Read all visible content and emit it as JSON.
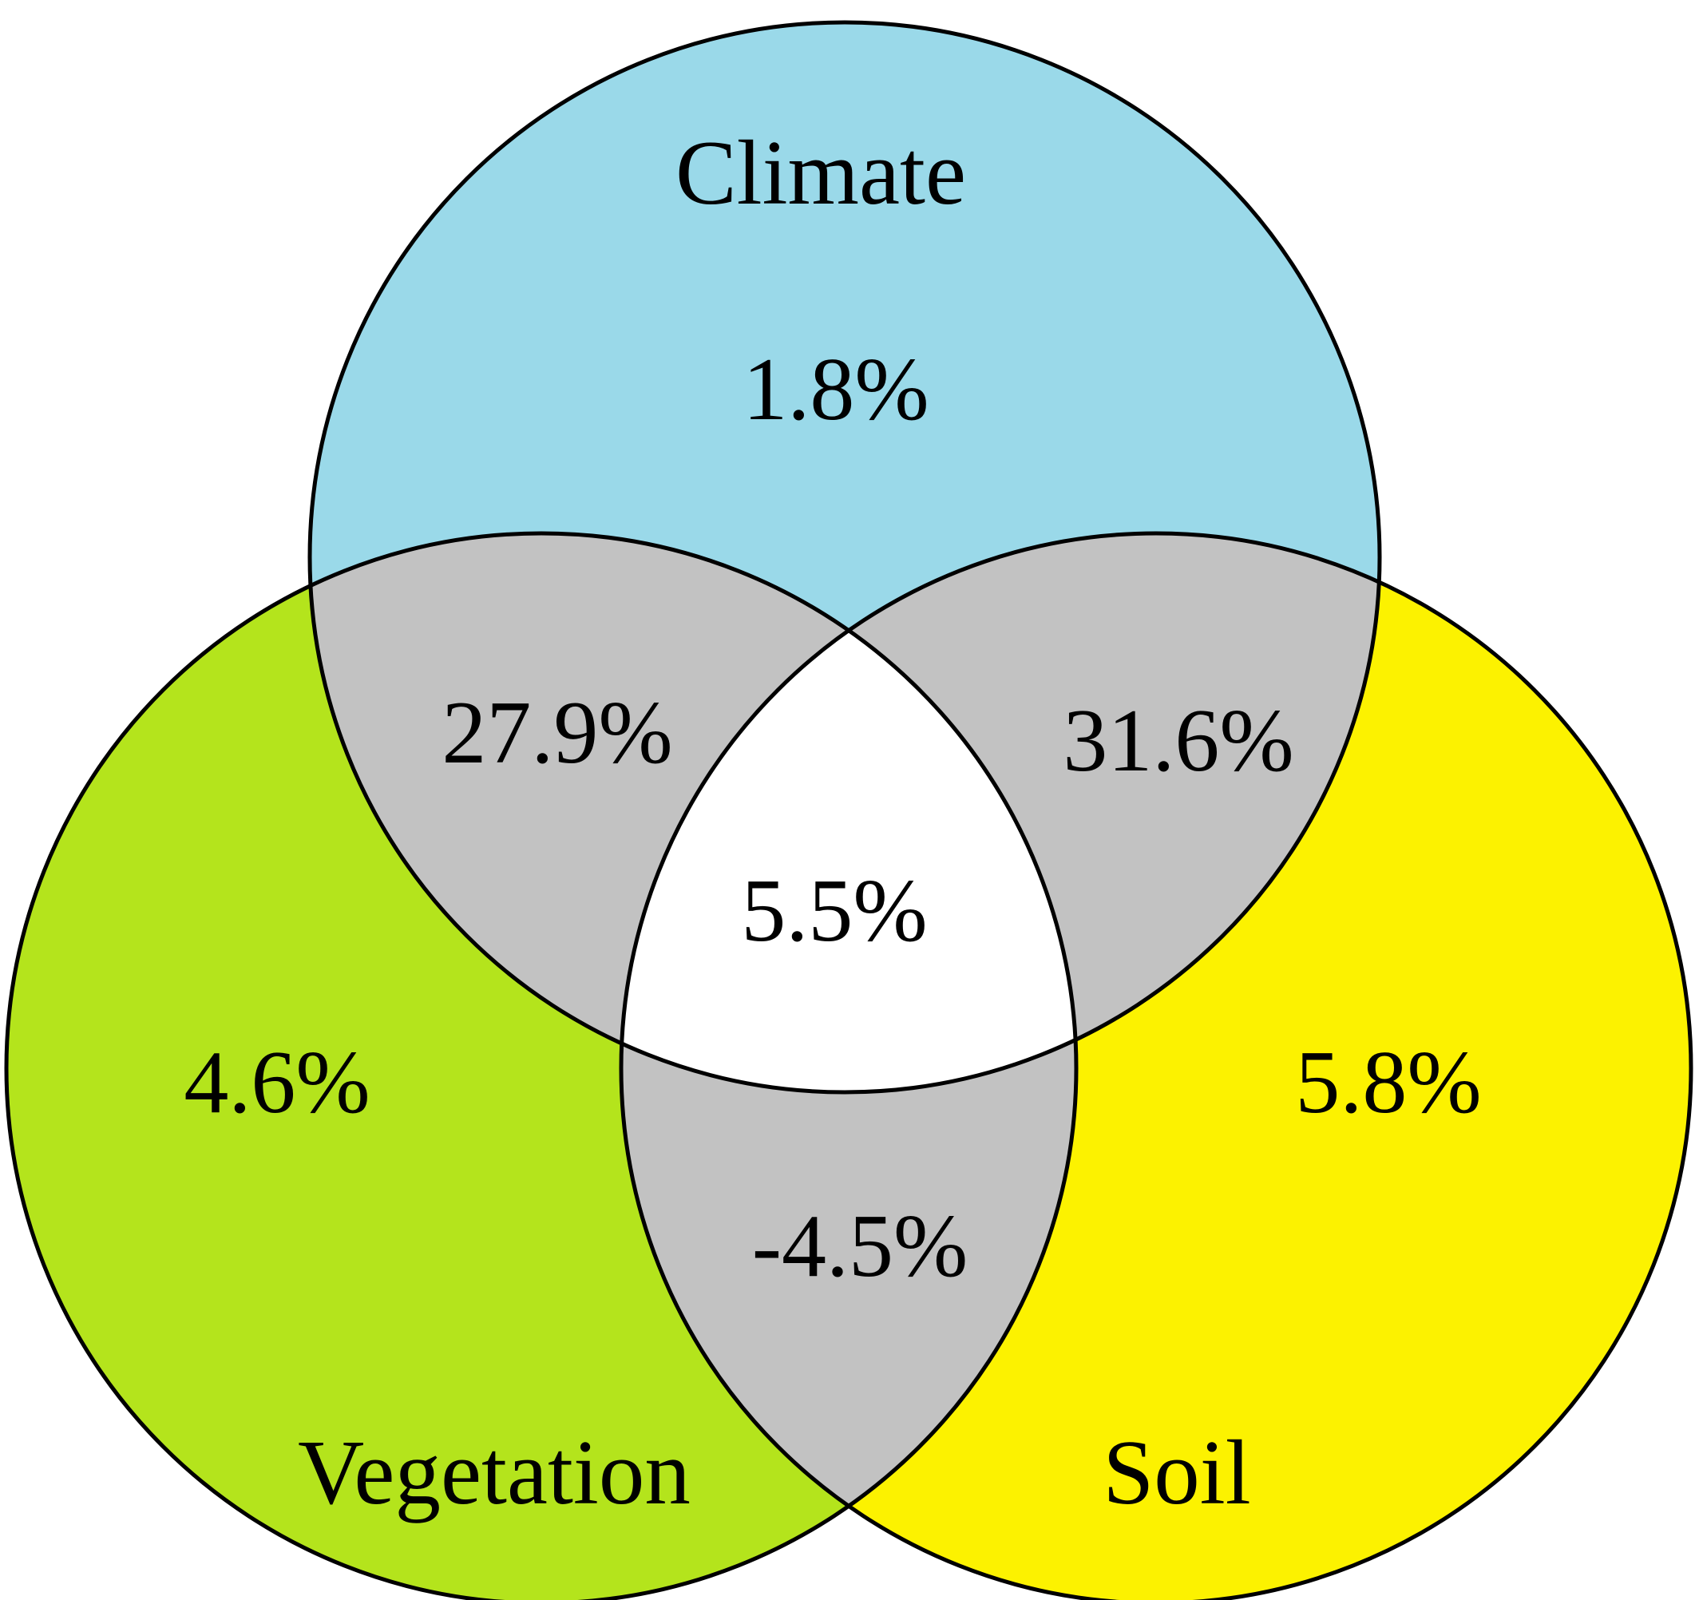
{
  "sets": {
    "climate": {
      "label": "Climate",
      "color": "#9ad9e9"
    },
    "vegetation": {
      "label": "Vegetation",
      "color": "#b4e41c"
    },
    "soil": {
      "label": "Soil",
      "color": "#fcf200"
    }
  },
  "regions": {
    "climate_only": "1.8%",
    "vegetation_only": "4.6%",
    "soil_only": "5.8%",
    "climate_vegetation": "27.9%",
    "climate_soil": "31.6%",
    "vegetation_soil": "-4.5%",
    "all_three": "5.5%"
  },
  "colors": {
    "pairwise_overlap": "#c2c2c2",
    "triple_overlap": "#ffffff",
    "outline": "#000000"
  }
}
